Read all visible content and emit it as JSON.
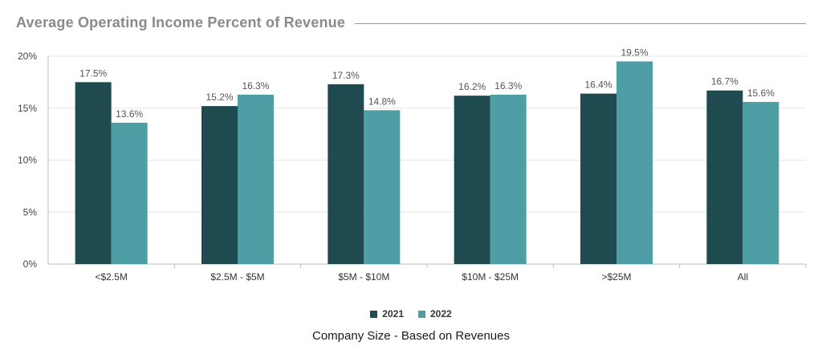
{
  "chart_data": {
    "type": "bar",
    "title": "Average Operating Income Percent of Revenue",
    "xlabel": "Company Size - Based on Revenues",
    "ylabel": "",
    "ylim": [
      0,
      20
    ],
    "yticks": [
      0,
      5,
      10,
      15,
      20
    ],
    "ytick_labels": [
      "0%",
      "5%",
      "10%",
      "15%",
      "20%"
    ],
    "categories": [
      "<$2.5M",
      "$2.5M - $5M",
      "$5M - $10M",
      "$10M - $25M",
      ">$25M",
      "All"
    ],
    "series": [
      {
        "name": "2021",
        "color": "#1f4a50",
        "values": [
          17.5,
          15.2,
          17.3,
          16.2,
          16.4,
          16.7
        ],
        "labels": [
          "17.5%",
          "15.2%",
          "17.3%",
          "16.2%",
          "16.4%",
          "16.7%"
        ]
      },
      {
        "name": "2022",
        "color": "#4e9ea6",
        "values": [
          13.6,
          16.3,
          14.8,
          16.3,
          19.5,
          15.6
        ],
        "labels": [
          "13.6%",
          "16.3%",
          "14.8%",
          "16.3%",
          "19.5%",
          "15.6%"
        ]
      }
    ],
    "grid": true,
    "legend_position": "bottom"
  }
}
